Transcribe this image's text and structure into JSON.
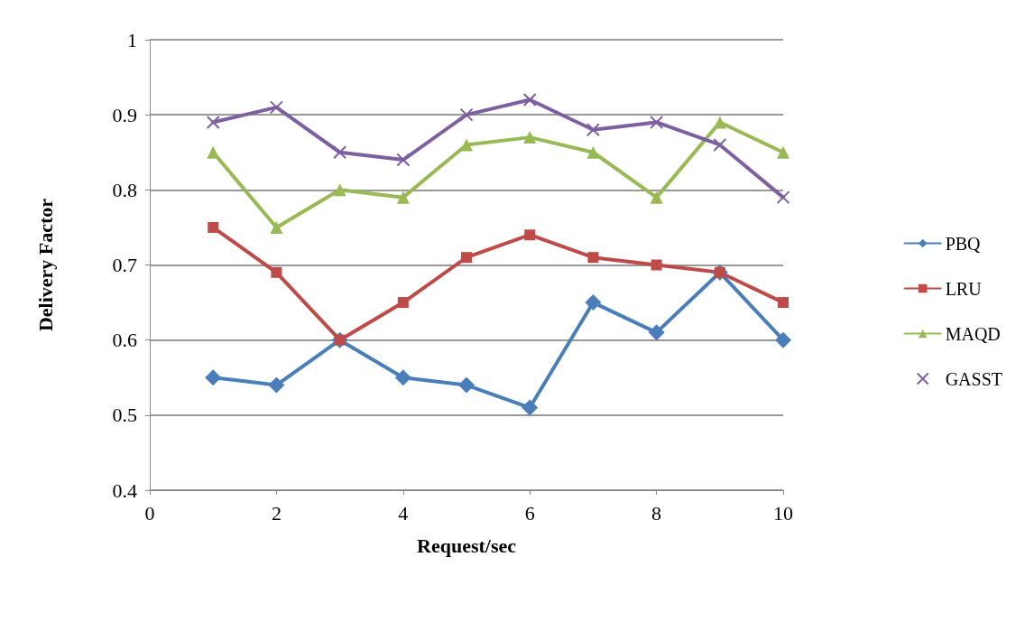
{
  "chart_data": {
    "type": "line",
    "xlabel": "Request/sec",
    "ylabel": "Delivery Factor",
    "x": [
      1,
      2,
      3,
      4,
      5,
      6,
      7,
      8,
      9,
      10
    ],
    "series": [
      {
        "name": "PBQ",
        "color": "#4a7ebb",
        "marker": "diamond",
        "values": [
          0.55,
          0.54,
          0.6,
          0.55,
          0.54,
          0.51,
          0.65,
          0.61,
          0.69,
          0.6
        ]
      },
      {
        "name": "LRU",
        "color": "#be4b48",
        "marker": "square",
        "values": [
          0.75,
          0.69,
          0.6,
          0.65,
          0.71,
          0.74,
          0.71,
          0.7,
          0.69,
          0.65
        ]
      },
      {
        "name": "MAQD",
        "color": "#98b954",
        "marker": "triangle",
        "values": [
          0.85,
          0.75,
          0.8,
          0.79,
          0.86,
          0.87,
          0.85,
          0.79,
          0.89,
          0.85
        ]
      },
      {
        "name": "GASST",
        "color": "#7d60a0",
        "marker": "cross",
        "values": [
          0.89,
          0.91,
          0.85,
          0.84,
          0.9,
          0.92,
          0.88,
          0.89,
          0.86,
          0.79
        ]
      }
    ],
    "xlim": [
      0,
      10
    ],
    "xticks": [
      0,
      2,
      4,
      6,
      8,
      10
    ],
    "ylim": [
      0.4,
      1
    ],
    "yticks": [
      0.4,
      0.5,
      0.6,
      0.7,
      0.8,
      0.9,
      1
    ],
    "grid": "y",
    "legend": "right",
    "line_style": "solid"
  }
}
